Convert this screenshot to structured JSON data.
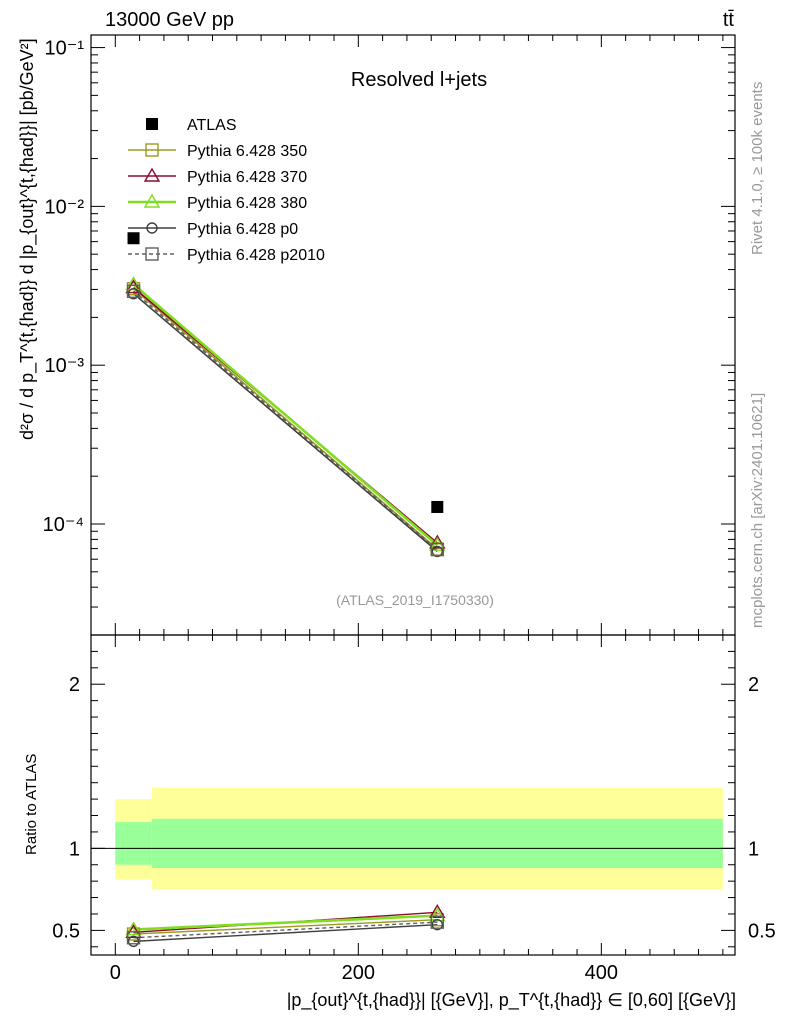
{
  "chart_data": {
    "type": "line",
    "header_left": "13000 GeV pp",
    "header_right": "tt̄",
    "title": "Resolved l+jets",
    "watermark": "(ATLAS_2019_I1750330)",
    "side_label_top": "Rivet 4.1.0, ≥ 100k events",
    "side_label_bottom": "mcplots.cern.ch [arXiv:2401.10621]",
    "ylabel_main": "d²σ / d p_T^{t,{had}} d |p_{out}^{t,{had}}| [pb/GeV²]",
    "ylabel_ratio": "Ratio to ATLAS",
    "xlabel": "|p_{out}^{t,{had}}| [{GeV}], p_T^{t,{had}} ∈ [0,60] [{GeV}]",
    "xlim": [
      -20,
      510
    ],
    "ylim_main": [
      2e-05,
      0.12
    ],
    "ylim_ratio": [
      0.35,
      2.3
    ],
    "x_ticks": [
      0,
      200,
      400
    ],
    "x_tick_labels": [
      "0",
      "200",
      "400"
    ],
    "y_main_ticks": [
      0.0001,
      0.001,
      0.01,
      0.1
    ],
    "y_main_tick_labels": [
      "10⁻⁴",
      "10⁻³",
      "10⁻²",
      "10⁻¹"
    ],
    "y_ratio_ticks": [
      0.5,
      1,
      2
    ],
    "y_ratio_tick_labels": [
      "0.5",
      "1",
      "2"
    ],
    "x": [
      15,
      265
    ],
    "bins": [
      [
        0,
        30
      ],
      [
        30,
        500
      ]
    ],
    "atlas": {
      "name": "ATLAS",
      "values": [
        0.0063,
        0.000128
      ],
      "band_inner": [
        [
          0.9,
          1.16
        ],
        [
          0.88,
          1.18
        ]
      ],
      "band_outer": [
        [
          0.81,
          1.3
        ],
        [
          0.75,
          1.37
        ]
      ]
    },
    "series": [
      {
        "name": "Pythia 6.428 350",
        "values": [
          0.00303,
          6.95e-05
        ],
        "ratio": [
          0.478,
          0.565
        ],
        "color": "#9a9a20",
        "marker": "square-open",
        "dash": ""
      },
      {
        "name": "Pythia 6.428 370",
        "values": [
          0.00308,
          7.6e-05
        ],
        "ratio": [
          0.488,
          0.61
        ],
        "color": "#8b0a2a",
        "marker": "triangle-open",
        "dash": ""
      },
      {
        "name": "Pythia 6.428 380",
        "values": [
          0.00322,
          7.35e-05
        ],
        "ratio": [
          0.505,
          0.59
        ],
        "color": "#80dd20",
        "marker": "triangle-open",
        "dash": ""
      },
      {
        "name": "Pythia 6.428 p0",
        "values": [
          0.00282,
          6.72e-05
        ],
        "ratio": [
          0.433,
          0.535
        ],
        "color": "#404040",
        "marker": "circle-open",
        "dash": ""
      },
      {
        "name": "Pythia 6.428 p2010",
        "values": [
          0.00292,
          6.9e-05
        ],
        "ratio": [
          0.455,
          0.55
        ],
        "color": "#606060",
        "marker": "square-open",
        "dash": "4,3"
      }
    ],
    "colors": {
      "band_inner": "#99ff99",
      "band_outer": "#ffff99",
      "axis": "#000000",
      "watermark": "#999999",
      "side_label": "#999999"
    }
  }
}
